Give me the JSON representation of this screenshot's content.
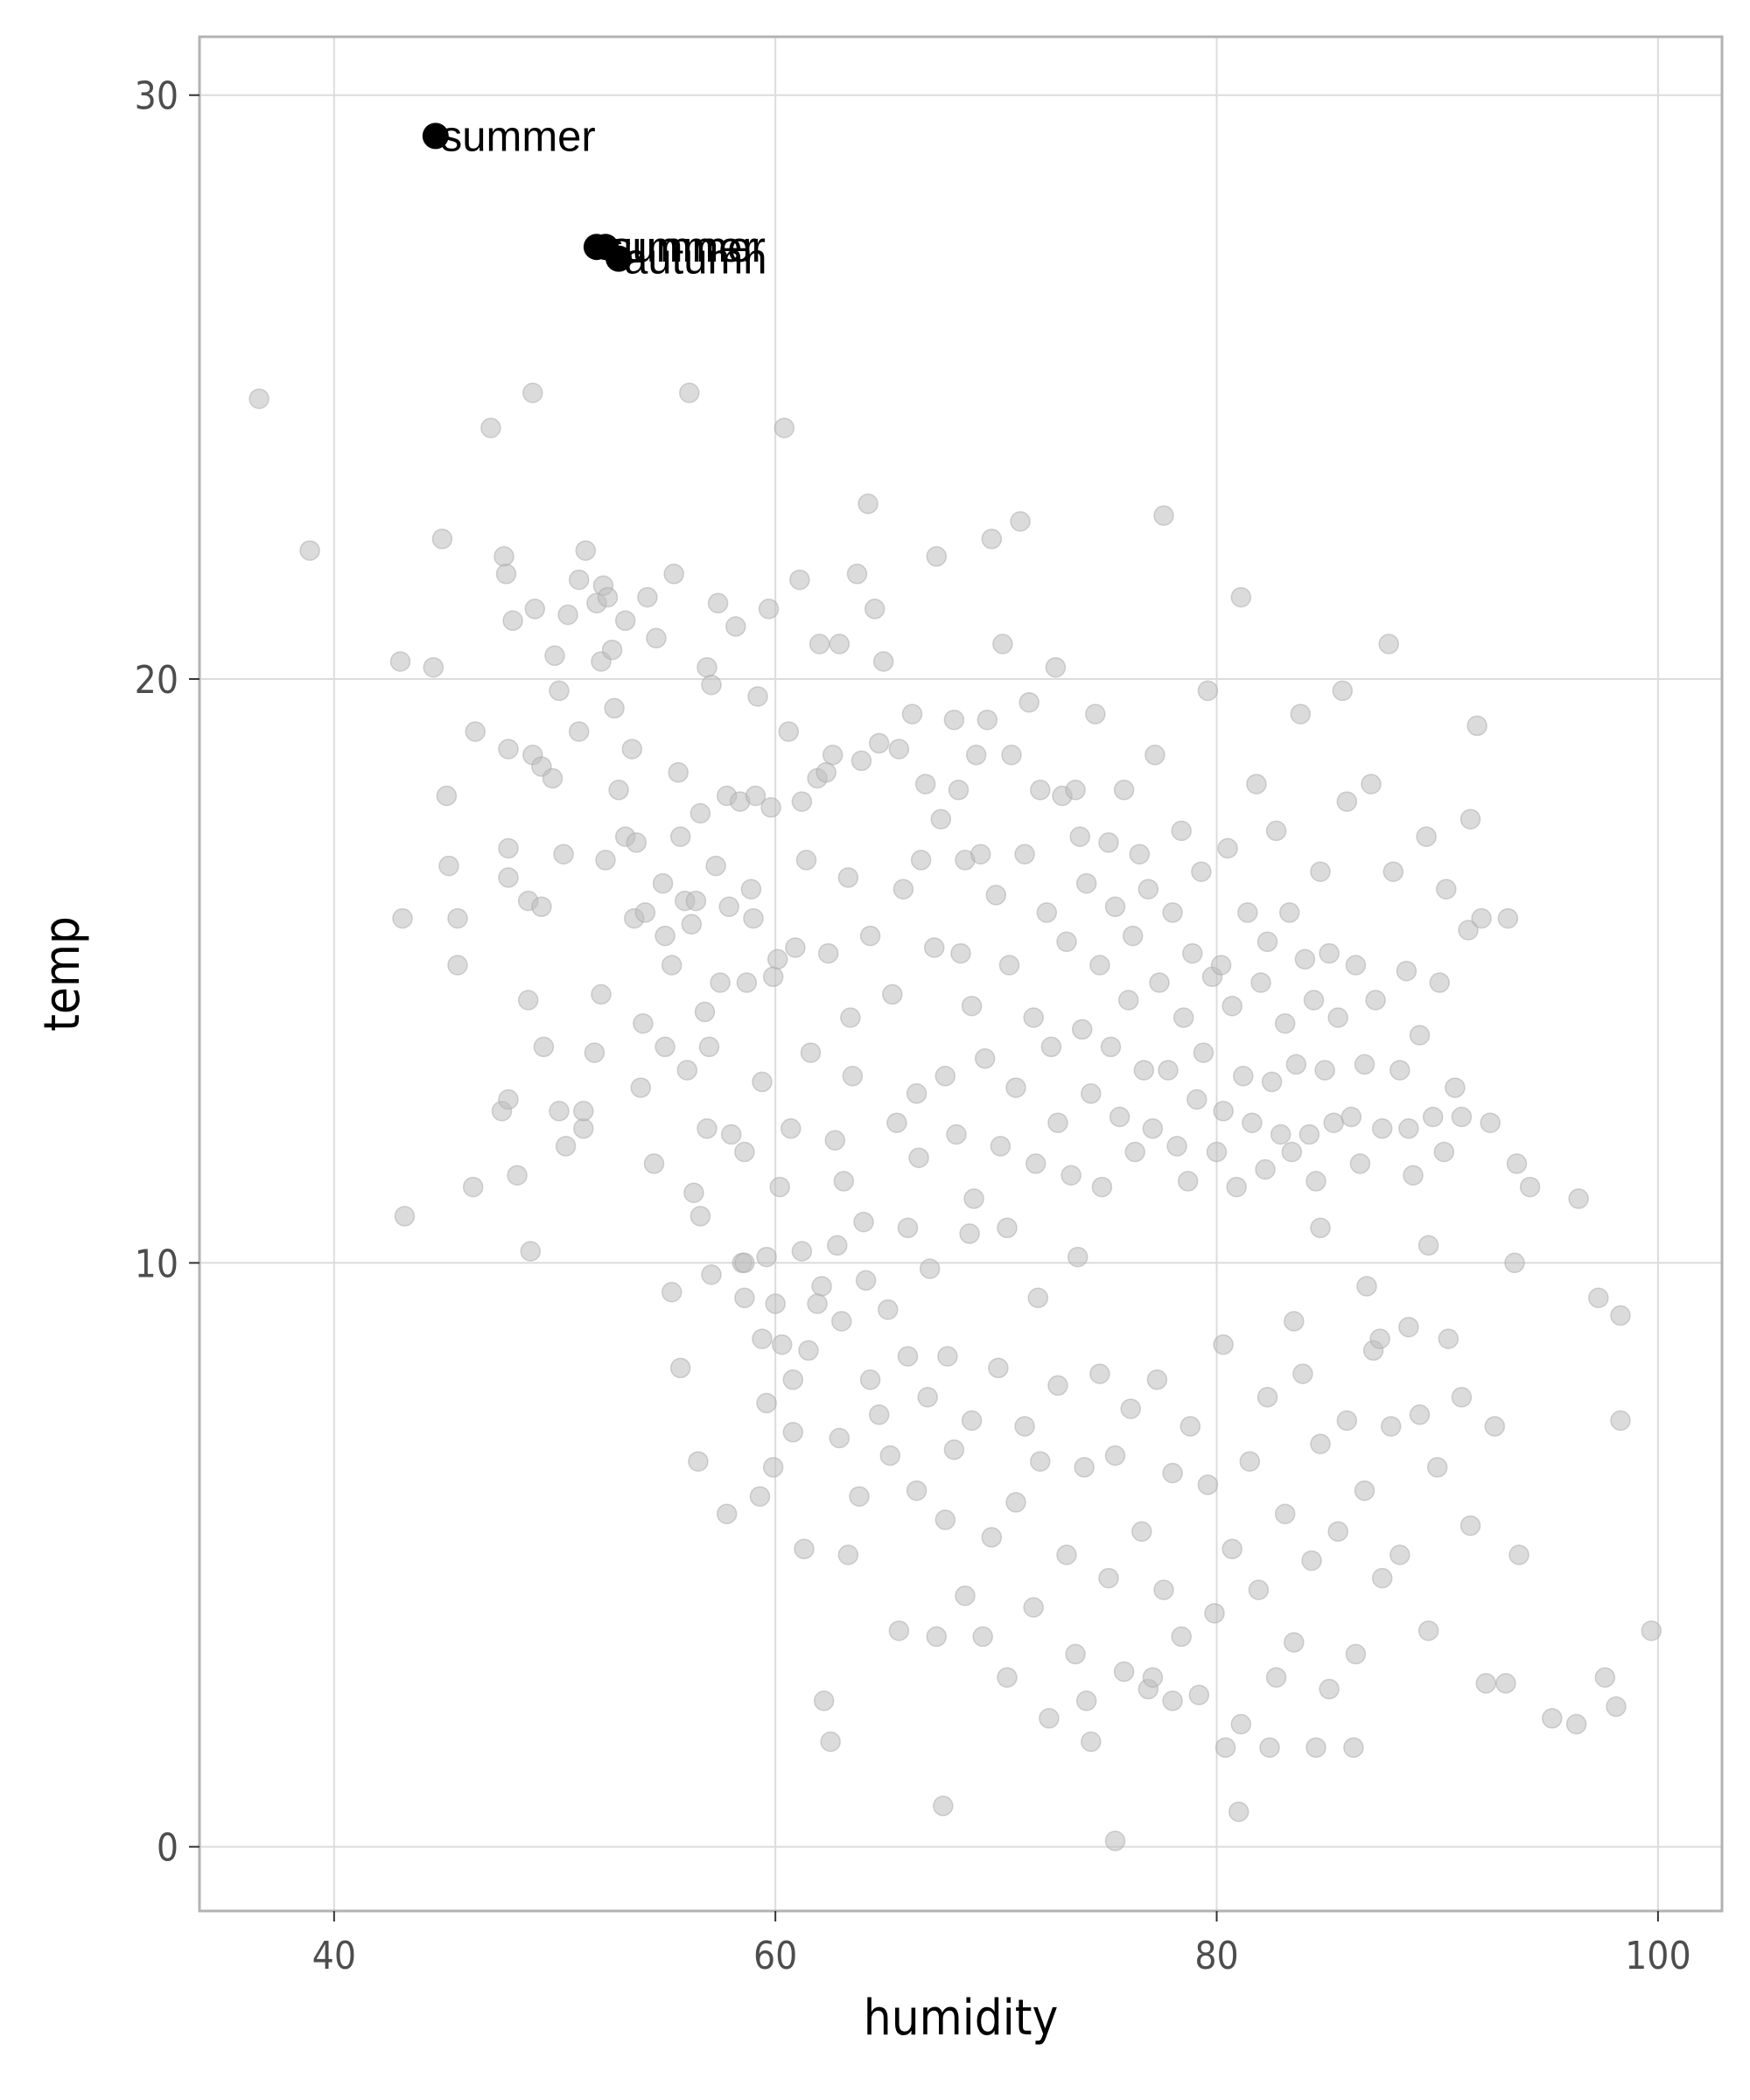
{
  "chart_data": {
    "type": "scatter",
    "xlabel": "humidity",
    "ylabel": "temp",
    "xlim": [
      33.9,
      102.9
    ],
    "ylim": [
      -1.1,
      31.0
    ],
    "x_ticks": [
      40,
      60,
      80,
      100
    ],
    "y_ticks": [
      0,
      10,
      20,
      30
    ],
    "x_tick_labels": [
      "40",
      "60",
      "80",
      "100"
    ],
    "y_tick_labels": [
      "0",
      "10",
      "20",
      "30"
    ],
    "grid": true,
    "legend": "none",
    "colors": {
      "background_points": "#bdbdbd",
      "highlight_points": "#000000",
      "grid": "#dcdcdc",
      "panel_border": "#b3b3b3"
    },
    "highlighted_points": [
      {
        "x": 44.6,
        "y": 29.3,
        "label": "summer"
      },
      {
        "x": 51.9,
        "y": 27.4,
        "label": "summer"
      },
      {
        "x": 52.3,
        "y": 27.4,
        "label": "summer"
      },
      {
        "x": 52.9,
        "y": 27.2,
        "label": "autumn"
      }
    ],
    "background_points": [
      [
        36.6,
        24.8
      ],
      [
        38.9,
        22.2
      ],
      [
        43.0,
        20.3
      ],
      [
        43.1,
        15.9
      ],
      [
        43.2,
        10.8
      ],
      [
        44.5,
        20.2
      ],
      [
        44.9,
        22.4
      ],
      [
        45.1,
        18.0
      ],
      [
        45.2,
        16.8
      ],
      [
        45.6,
        15.9
      ],
      [
        45.6,
        15.1
      ],
      [
        46.3,
        11.3
      ],
      [
        46.4,
        19.1
      ],
      [
        47.1,
        24.3
      ],
      [
        47.6,
        12.6
      ],
      [
        47.7,
        22.1
      ],
      [
        47.8,
        21.8
      ],
      [
        47.9,
        17.1
      ],
      [
        47.9,
        16.6
      ],
      [
        47.9,
        12.8
      ],
      [
        47.9,
        18.8
      ],
      [
        48.1,
        21.0
      ],
      [
        48.3,
        11.5
      ],
      [
        48.8,
        16.2
      ],
      [
        48.8,
        14.5
      ],
      [
        48.9,
        10.2
      ],
      [
        49.0,
        18.7
      ],
      [
        49.0,
        24.9
      ],
      [
        49.1,
        21.2
      ],
      [
        49.4,
        18.5
      ],
      [
        49.4,
        16.1
      ],
      [
        49.5,
        13.7
      ],
      [
        49.9,
        18.3
      ],
      [
        50.0,
        20.4
      ],
      [
        50.2,
        19.8
      ],
      [
        50.2,
        12.6
      ],
      [
        50.4,
        17.0
      ],
      [
        50.5,
        12.0
      ],
      [
        50.6,
        21.1
      ],
      [
        51.1,
        21.7
      ],
      [
        51.1,
        19.1
      ],
      [
        51.3,
        12.3
      ],
      [
        51.3,
        12.6
      ],
      [
        51.4,
        22.2
      ],
      [
        51.8,
        13.6
      ],
      [
        51.9,
        21.3
      ],
      [
        52.1,
        20.3
      ],
      [
        52.1,
        14.6
      ],
      [
        52.2,
        21.6
      ],
      [
        52.3,
        16.9
      ],
      [
        52.4,
        21.4
      ],
      [
        52.6,
        20.5
      ],
      [
        52.7,
        19.5
      ],
      [
        52.9,
        18.1
      ],
      [
        53.2,
        17.3
      ],
      [
        53.2,
        21.0
      ],
      [
        53.5,
        18.8
      ],
      [
        53.6,
        15.9
      ],
      [
        53.7,
        17.2
      ],
      [
        53.9,
        13.0
      ],
      [
        54.0,
        14.1
      ],
      [
        54.1,
        16.0
      ],
      [
        54.2,
        21.4
      ],
      [
        54.5,
        11.7
      ],
      [
        54.6,
        20.7
      ],
      [
        54.9,
        16.5
      ],
      [
        55.0,
        15.6
      ],
      [
        55.0,
        13.7
      ],
      [
        55.3,
        15.1
      ],
      [
        55.4,
        21.8
      ],
      [
        55.6,
        18.4
      ],
      [
        55.7,
        17.3
      ],
      [
        55.9,
        16.2
      ],
      [
        56.0,
        13.3
      ],
      [
        56.1,
        24.9
      ],
      [
        56.2,
        15.8
      ],
      [
        56.3,
        11.2
      ],
      [
        56.4,
        16.2
      ],
      [
        56.6,
        10.8
      ],
      [
        56.6,
        17.7
      ],
      [
        56.8,
        14.3
      ],
      [
        56.9,
        20.2
      ],
      [
        57.0,
        13.7
      ],
      [
        57.1,
        19.9
      ],
      [
        57.3,
        16.8
      ],
      [
        57.4,
        21.3
      ],
      [
        57.5,
        14.8
      ],
      [
        57.8,
        18.0
      ],
      [
        57.9,
        16.1
      ],
      [
        58.0,
        12.2
      ],
      [
        58.2,
        20.9
      ],
      [
        58.4,
        17.9
      ],
      [
        58.6,
        11.9
      ],
      [
        58.7,
        14.8
      ],
      [
        58.9,
        16.4
      ],
      [
        59.0,
        15.9
      ],
      [
        59.1,
        18.0
      ],
      [
        59.2,
        19.7
      ],
      [
        59.4,
        13.1
      ],
      [
        59.4,
        8.7
      ],
      [
        59.6,
        10.1
      ],
      [
        59.7,
        21.2
      ],
      [
        59.8,
        17.8
      ],
      [
        59.9,
        14.9
      ],
      [
        60.1,
        15.2
      ],
      [
        60.4,
        24.3
      ],
      [
        60.6,
        19.1
      ],
      [
        60.7,
        12.3
      ],
      [
        60.9,
        15.4
      ],
      [
        61.1,
        21.7
      ],
      [
        61.2,
        17.9
      ],
      [
        61.4,
        16.9
      ],
      [
        61.6,
        13.6
      ],
      [
        61.9,
        18.3
      ],
      [
        62.0,
        20.6
      ],
      [
        62.1,
        9.6
      ],
      [
        62.3,
        18.4
      ],
      [
        62.4,
        15.3
      ],
      [
        62.6,
        18.7
      ],
      [
        62.7,
        12.1
      ],
      [
        62.8,
        10.3
      ],
      [
        62.9,
        20.6
      ],
      [
        63.1,
        11.4
      ],
      [
        63.3,
        16.6
      ],
      [
        63.4,
        14.2
      ],
      [
        63.5,
        13.2
      ],
      [
        63.7,
        21.8
      ],
      [
        63.9,
        18.6
      ],
      [
        64.1,
        9.7
      ],
      [
        64.2,
        23.0
      ],
      [
        64.3,
        15.6
      ],
      [
        64.5,
        21.2
      ],
      [
        64.7,
        18.9
      ],
      [
        64.9,
        20.3
      ],
      [
        65.1,
        9.2
      ],
      [
        65.3,
        14.6
      ],
      [
        65.5,
        12.4
      ],
      [
        65.6,
        18.8
      ],
      [
        65.8,
        16.4
      ],
      [
        66.0,
        10.6
      ],
      [
        66.2,
        19.4
      ],
      [
        66.4,
        12.9
      ],
      [
        66.6,
        16.9
      ],
      [
        66.8,
        18.2
      ],
      [
        67.0,
        9.9
      ],
      [
        67.2,
        15.4
      ],
      [
        67.3,
        22.1
      ],
      [
        67.5,
        17.6
      ],
      [
        67.7,
        13.2
      ],
      [
        67.8,
        8.4
      ],
      [
        68.1,
        19.3
      ],
      [
        68.3,
        18.1
      ],
      [
        68.4,
        15.3
      ],
      [
        68.6,
        16.9
      ],
      [
        68.8,
        10.5
      ],
      [
        68.9,
        14.4
      ],
      [
        69.1,
        18.7
      ],
      [
        69.3,
        17.0
      ],
      [
        69.5,
        13.5
      ],
      [
        69.6,
        19.3
      ],
      [
        69.8,
        22.4
      ],
      [
        70.0,
        16.3
      ],
      [
        70.2,
        12.0
      ],
      [
        70.3,
        20.6
      ],
      [
        70.6,
        15.1
      ],
      [
        70.7,
        18.7
      ],
      [
        70.9,
        13.0
      ],
      [
        71.1,
        22.7
      ],
      [
        71.3,
        17.0
      ],
      [
        71.5,
        19.6
      ],
      [
        71.7,
        14.2
      ],
      [
        71.8,
        11.7
      ],
      [
        72.0,
        18.1
      ],
      [
        72.3,
        16.0
      ],
      [
        72.5,
        13.7
      ],
      [
        72.7,
        20.2
      ],
      [
        72.8,
        12.4
      ],
      [
        73.0,
        18.0
      ],
      [
        73.2,
        15.5
      ],
      [
        73.4,
        11.5
      ],
      [
        73.6,
        18.1
      ],
      [
        73.8,
        17.3
      ],
      [
        73.9,
        14.0
      ],
      [
        74.1,
        16.5
      ],
      [
        74.3,
        12.9
      ],
      [
        74.5,
        19.4
      ],
      [
        74.7,
        15.1
      ],
      [
        74.8,
        11.3
      ],
      [
        75.1,
        17.2
      ],
      [
        75.2,
        13.7
      ],
      [
        75.4,
        16.1
      ],
      [
        75.6,
        12.5
      ],
      [
        75.8,
        18.1
      ],
      [
        76.0,
        14.5
      ],
      [
        76.2,
        15.6
      ],
      [
        76.3,
        11.9
      ],
      [
        76.5,
        17.0
      ],
      [
        76.7,
        13.3
      ],
      [
        76.9,
        16.4
      ],
      [
        77.1,
        12.3
      ],
      [
        77.2,
        18.7
      ],
      [
        77.4,
        14.8
      ],
      [
        77.6,
        22.8
      ],
      [
        77.8,
        13.3
      ],
      [
        78.0,
        16.0
      ],
      [
        78.2,
        12.0
      ],
      [
        78.4,
        17.4
      ],
      [
        78.5,
        14.2
      ],
      [
        78.7,
        11.4
      ],
      [
        78.9,
        15.3
      ],
      [
        79.1,
        12.8
      ],
      [
        79.3,
        16.7
      ],
      [
        79.4,
        13.6
      ],
      [
        79.6,
        19.8
      ],
      [
        79.8,
        14.9
      ],
      [
        80.0,
        11.9
      ],
      [
        80.2,
        15.1
      ],
      [
        80.3,
        12.6
      ],
      [
        80.5,
        17.1
      ],
      [
        80.7,
        14.4
      ],
      [
        80.9,
        11.3
      ],
      [
        81.1,
        21.4
      ],
      [
        81.2,
        13.2
      ],
      [
        81.4,
        16.0
      ],
      [
        81.6,
        12.4
      ],
      [
        81.8,
        18.2
      ],
      [
        82.0,
        14.8
      ],
      [
        82.2,
        11.6
      ],
      [
        82.3,
        15.5
      ],
      [
        82.5,
        13.1
      ],
      [
        82.7,
        17.4
      ],
      [
        82.9,
        12.2
      ],
      [
        83.1,
        14.1
      ],
      [
        83.3,
        16.0
      ],
      [
        83.4,
        11.9
      ],
      [
        83.6,
        13.4
      ],
      [
        83.8,
        19.4
      ],
      [
        84.0,
        15.2
      ],
      [
        84.2,
        12.2
      ],
      [
        84.4,
        14.5
      ],
      [
        84.5,
        11.4
      ],
      [
        84.7,
        16.7
      ],
      [
        84.9,
        13.3
      ],
      [
        85.1,
        15.3
      ],
      [
        85.3,
        12.4
      ],
      [
        85.5,
        14.2
      ],
      [
        85.7,
        19.8
      ],
      [
        85.9,
        17.9
      ],
      [
        86.1,
        12.5
      ],
      [
        86.3,
        15.1
      ],
      [
        86.5,
        11.7
      ],
      [
        86.7,
        13.4
      ],
      [
        87.0,
        18.2
      ],
      [
        87.2,
        14.5
      ],
      [
        87.5,
        12.3
      ],
      [
        87.8,
        20.6
      ],
      [
        88.0,
        16.7
      ],
      [
        88.3,
        13.3
      ],
      [
        88.6,
        15.0
      ],
      [
        88.9,
        11.5
      ],
      [
        89.2,
        13.9
      ],
      [
        89.5,
        17.3
      ],
      [
        89.8,
        12.5
      ],
      [
        90.1,
        14.8
      ],
      [
        90.4,
        16.4
      ],
      [
        90.8,
        13.0
      ],
      [
        91.1,
        12.5
      ],
      [
        91.4,
        15.7
      ],
      [
        91.5,
        17.6
      ],
      [
        91.8,
        19.2
      ],
      [
        92.0,
        15.9
      ],
      [
        92.4,
        12.4
      ],
      [
        93.2,
        15.9
      ],
      [
        93.6,
        11.7
      ],
      [
        94.2,
        11.3
      ],
      [
        55.3,
        9.5
      ],
      [
        55.7,
        8.2
      ],
      [
        56.5,
        6.6
      ],
      [
        57.1,
        9.8
      ],
      [
        57.8,
        5.7
      ],
      [
        58.5,
        10.0
      ],
      [
        58.6,
        9.4
      ],
      [
        59.3,
        6.0
      ],
      [
        59.6,
        7.6
      ],
      [
        59.9,
        6.5
      ],
      [
        60.0,
        9.3
      ],
      [
        60.3,
        8.6
      ],
      [
        60.8,
        7.1
      ],
      [
        61.3,
        5.1
      ],
      [
        61.5,
        8.5
      ],
      [
        61.9,
        9.3
      ],
      [
        62.2,
        2.5
      ],
      [
        62.5,
        1.8
      ],
      [
        62.9,
        7.0
      ],
      [
        63.3,
        5.0
      ],
      [
        63.8,
        6.0
      ],
      [
        64.3,
        8.0
      ],
      [
        64.7,
        7.4
      ],
      [
        65.2,
        6.7
      ],
      [
        65.6,
        3.7
      ],
      [
        66.0,
        8.4
      ],
      [
        66.4,
        6.1
      ],
      [
        66.9,
        7.7
      ],
      [
        67.3,
        3.6
      ],
      [
        67.7,
        5.6
      ],
      [
        68.1,
        6.8
      ],
      [
        68.6,
        4.3
      ],
      [
        68.9,
        7.3
      ],
      [
        69.4,
        3.6
      ],
      [
        69.8,
        5.3
      ],
      [
        70.1,
        8.2
      ],
      [
        70.5,
        2.9
      ],
      [
        70.9,
        5.9
      ],
      [
        71.3,
        7.2
      ],
      [
        71.7,
        4.1
      ],
      [
        72.0,
        6.6
      ],
      [
        72.4,
        2.2
      ],
      [
        72.8,
        7.9
      ],
      [
        73.2,
        5.0
      ],
      [
        73.6,
        3.3
      ],
      [
        74.0,
        6.5
      ],
      [
        74.3,
        1.8
      ],
      [
        74.7,
        8.1
      ],
      [
        75.1,
        4.6
      ],
      [
        75.4,
        6.7
      ],
      [
        75.8,
        3.0
      ],
      [
        76.1,
        7.5
      ],
      [
        76.6,
        5.4
      ],
      [
        76.9,
        2.7
      ],
      [
        77.3,
        8.0
      ],
      [
        77.6,
        4.4
      ],
      [
        78.0,
        6.4
      ],
      [
        78.4,
        3.6
      ],
      [
        78.8,
        7.2
      ],
      [
        79.2,
        2.6
      ],
      [
        79.6,
        6.2
      ],
      [
        79.9,
        4.0
      ],
      [
        80.3,
        8.6
      ],
      [
        80.7,
        5.1
      ],
      [
        81.1,
        2.1
      ],
      [
        81.5,
        6.6
      ],
      [
        81.9,
        4.4
      ],
      [
        82.3,
        7.7
      ],
      [
        82.7,
        2.9
      ],
      [
        83.1,
        5.7
      ],
      [
        83.5,
        3.5
      ],
      [
        83.9,
        8.1
      ],
      [
        84.3,
        4.9
      ],
      [
        84.7,
        6.9
      ],
      [
        85.1,
        2.7
      ],
      [
        85.5,
        5.4
      ],
      [
        85.9,
        7.3
      ],
      [
        86.3,
        3.3
      ],
      [
        86.7,
        6.1
      ],
      [
        87.1,
        8.5
      ],
      [
        87.5,
        4.6
      ],
      [
        87.9,
        7.2
      ],
      [
        88.3,
        5.0
      ],
      [
        88.7,
        8.9
      ],
      [
        89.2,
        7.4
      ],
      [
        89.6,
        3.7
      ],
      [
        90.0,
        6.5
      ],
      [
        90.5,
        8.7
      ],
      [
        91.1,
        7.7
      ],
      [
        91.5,
        5.5
      ],
      [
        92.2,
        2.8
      ],
      [
        92.6,
        7.2
      ],
      [
        93.1,
        2.8
      ],
      [
        93.7,
        5.0
      ],
      [
        95.2,
        2.2
      ],
      [
        96.3,
        2.1
      ],
      [
        97.6,
        2.9
      ],
      [
        98.1,
        2.4
      ],
      [
        99.7,
        3.7
      ],
      [
        97.3,
        9.4
      ],
      [
        98.3,
        9.1
      ],
      [
        98.3,
        7.3
      ],
      [
        96.4,
        11.1
      ],
      [
        93.5,
        10.0
      ],
      [
        67.6,
        0.7
      ],
      [
        75.4,
        0.1
      ],
      [
        80.4,
        1.7
      ],
      [
        81.0,
        0.6
      ],
      [
        78.0,
        2.5
      ],
      [
        84.5,
        1.7
      ],
      [
        86.2,
        1.7
      ],
      [
        82.4,
        1.7
      ],
      [
        77.1,
        2.9
      ],
      [
        74.1,
        2.5
      ],
      [
        88.7,
        12.3
      ],
      [
        89.6,
        10.3
      ],
      [
        90.3,
        11.9
      ],
      [
        84.7,
        10.6
      ],
      [
        86.8,
        9.6
      ],
      [
        83.5,
        9.0
      ],
      [
        87.4,
        8.7
      ],
      [
        71.9,
        9.4
      ],
      [
        70.5,
        10.6
      ],
      [
        73.7,
        10.1
      ],
      [
        66.5,
        11.8
      ],
      [
        63.0,
        9.0
      ],
      [
        64.0,
        10.7
      ],
      [
        68.2,
        12.2
      ],
      [
        69.0,
        11.1
      ],
      [
        58.6,
        10.0
      ],
      [
        60.2,
        11.3
      ],
      [
        60.8,
        8.0
      ],
      [
        56.9,
        12.3
      ],
      [
        61.2,
        10.2
      ]
    ]
  }
}
